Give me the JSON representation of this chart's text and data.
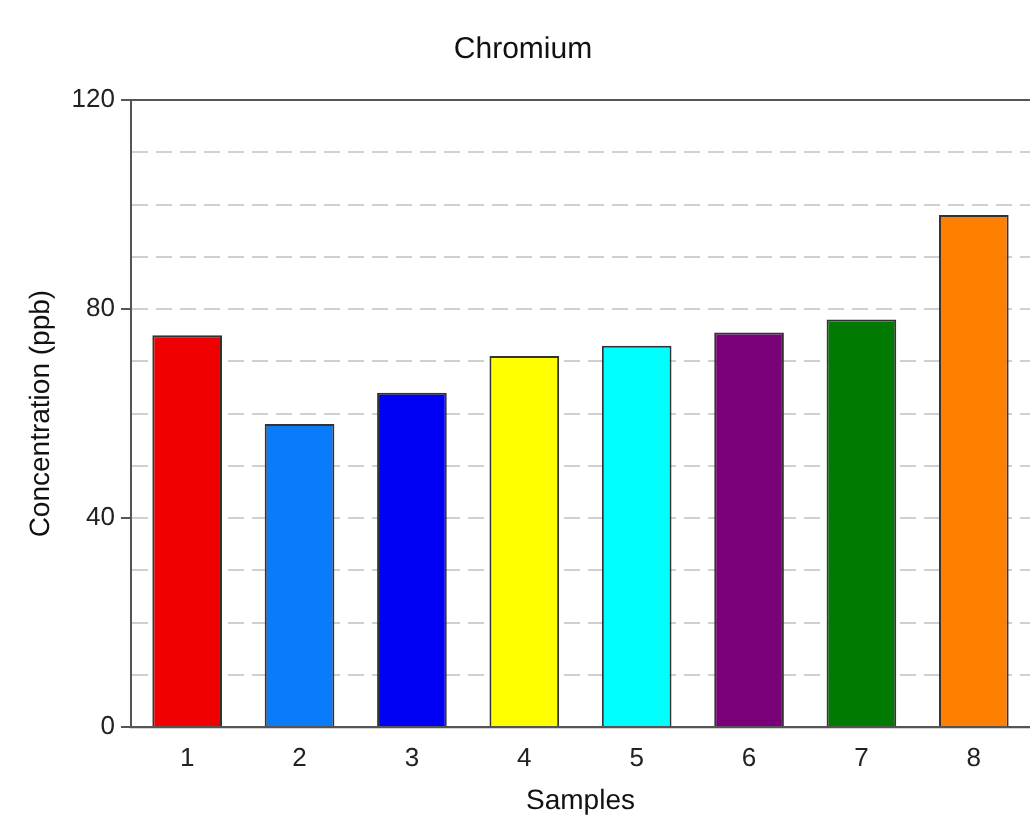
{
  "chart_data": {
    "type": "bar",
    "title": "Chromium",
    "xlabel": "Samples",
    "ylabel": "Concentration (ppb)",
    "categories": [
      "1",
      "2",
      "3",
      "4",
      "5",
      "6",
      "7",
      "8"
    ],
    "values": [
      75,
      58,
      64,
      71,
      73,
      75.5,
      78,
      98
    ],
    "colors": [
      "#f00000",
      "#0a7cfa",
      "#0000f5",
      "#ffff00",
      "#00ffff",
      "#7a007a",
      "#007a00",
      "#ff8000"
    ],
    "ylim": [
      0,
      120
    ],
    "yticks": [
      0,
      {
        "value": 10,
        "label": null
      },
      {
        "value": 20,
        "label": null
      },
      {
        "value": 30,
        "label": null
      },
      40,
      {
        "value": 50,
        "label": null
      },
      {
        "value": 60,
        "label": null
      },
      {
        "value": 70,
        "label": null
      },
      80,
      {
        "value": 90,
        "label": null
      },
      {
        "value": 100,
        "label": null
      },
      {
        "value": 110,
        "label": null
      },
      120
    ],
    "grid": "y"
  }
}
